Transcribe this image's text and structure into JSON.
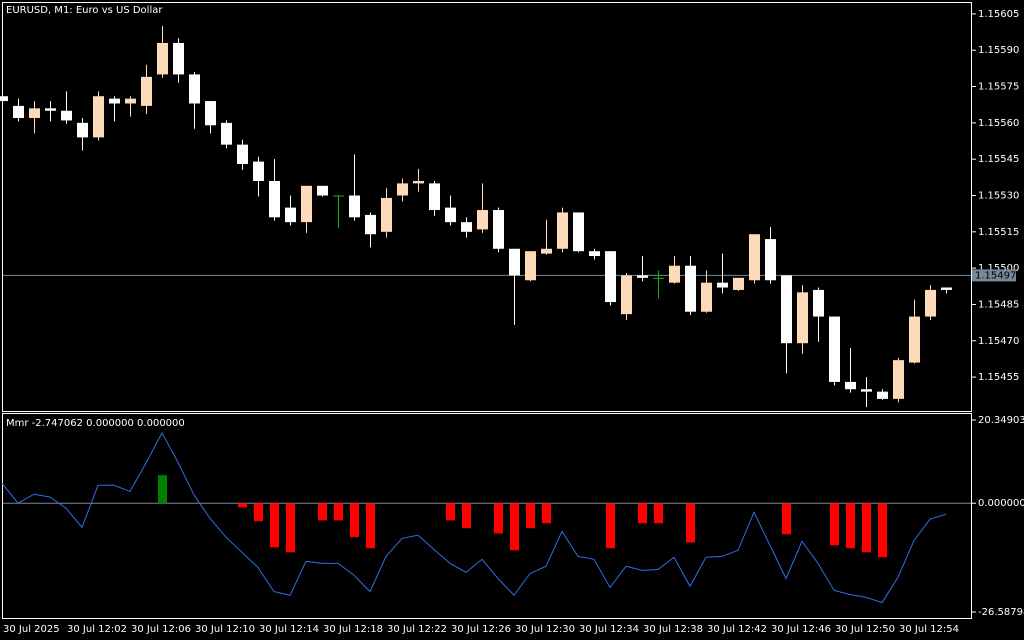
{
  "chart_data": [
    {
      "type": "candlestick",
      "title": "EURUSD, M1:  Euro vs US Dollar",
      "categories": [
        "30 Jul 2025",
        null,
        null,
        null,
        "30 Jul 12:02",
        null,
        null,
        null,
        "30 Jul 12:06",
        null,
        null,
        null,
        "30 Jul 12:10",
        null,
        null,
        null,
        "30 Jul 12:14",
        null,
        null,
        null,
        "30 Jul 12:18",
        null,
        null,
        null,
        "30 Jul 12:22",
        null,
        null,
        null,
        "30 Jul 12:26",
        null,
        null,
        null,
        "30 Jul 12:30",
        null,
        null,
        null,
        "30 Jul 12:34",
        null,
        null,
        null,
        "30 Jul 12:38",
        null,
        null,
        null,
        "30 Jul 12:42",
        null,
        null,
        null,
        "30 Jul 12:46",
        null,
        null,
        null,
        "30 Jul 12:50",
        null,
        null,
        null,
        "30 Jul 12:54",
        null,
        null,
        null
      ],
      "open": [
        1.15571,
        1.15567,
        1.15562,
        1.15566,
        1.15565,
        1.1556,
        1.15554,
        1.1557,
        1.15568,
        1.15567,
        1.1558,
        1.15593,
        1.1558,
        1.15569,
        1.1556,
        1.15551,
        1.15544,
        1.15536,
        1.15525,
        1.15519,
        1.15534,
        1.1553,
        1.1553,
        1.15522,
        1.15515,
        1.1553,
        1.15535,
        1.15535,
        1.15525,
        1.15519,
        1.15516,
        1.15524,
        1.15508,
        1.15495,
        1.15506,
        1.15508,
        1.15523,
        1.15507,
        1.15507,
        1.15481,
        1.15497,
        1.15496,
        1.15494,
        1.15501,
        1.15482,
        1.15494,
        1.15491,
        1.15495,
        1.15512,
        1.15497,
        1.15469,
        1.15491,
        1.1548,
        1.15453,
        1.1545,
        1.15449,
        1.15446,
        1.15461,
        1.1548,
        1.15492
      ],
      "high": [
        1.15571,
        1.1557,
        1.15569,
        1.15569,
        1.15573,
        1.15562,
        1.15573,
        1.15571,
        1.15571,
        1.15584,
        1.156,
        1.15595,
        1.15581,
        1.15569,
        1.15561,
        1.15553,
        1.15546,
        1.15545,
        1.1553,
        1.15534,
        1.15534,
        1.1553,
        1.15547,
        1.15523,
        1.15533,
        1.15537,
        1.15541,
        1.15536,
        1.1553,
        1.15521,
        1.15535,
        1.15525,
        1.15508,
        1.15507,
        1.1552,
        1.15525,
        1.15523,
        1.15508,
        1.15507,
        1.15498,
        1.15505,
        1.15499,
        1.15505,
        1.15505,
        1.15499,
        1.15506,
        1.15496,
        1.15514,
        1.15517,
        1.15497,
        1.15493,
        1.15492,
        1.1548,
        1.15467,
        1.15455,
        1.1545,
        1.15463,
        1.15487,
        1.15493,
        1.15492
      ],
      "low": [
        1.15568,
        1.15561,
        1.15556,
        1.15561,
        1.1556,
        1.15549,
        1.15553,
        1.15561,
        1.15563,
        1.15564,
        1.15579,
        1.15577,
        1.15558,
        1.15556,
        1.1555,
        1.15541,
        1.1553,
        1.1552,
        1.15518,
        1.15515,
        1.1553,
        1.15517,
        1.1552,
        1.15509,
        1.15513,
        1.15528,
        1.15532,
        1.15522,
        1.15518,
        1.15513,
        1.15515,
        1.15507,
        1.15477,
        1.15495,
        1.15506,
        1.15507,
        1.15507,
        1.15504,
        1.15485,
        1.15479,
        1.15495,
        1.15488,
        1.15494,
        1.15481,
        1.15482,
        1.1549,
        1.15491,
        1.15494,
        1.15494,
        1.15457,
        1.15465,
        1.1547,
        1.15452,
        1.15449,
        1.15443,
        1.15446,
        1.15445,
        1.15461,
        1.15479,
        1.1549
      ],
      "close": [
        1.15569,
        1.15562,
        1.15566,
        1.15565,
        1.15561,
        1.15554,
        1.15571,
        1.15568,
        1.1557,
        1.15579,
        1.15593,
        1.1558,
        1.15568,
        1.15559,
        1.15551,
        1.15543,
        1.15536,
        1.15521,
        1.15519,
        1.15534,
        1.1553,
        1.1553,
        1.15521,
        1.15514,
        1.15529,
        1.15535,
        1.15536,
        1.15524,
        1.15519,
        1.15515,
        1.15524,
        1.15508,
        1.15497,
        1.15507,
        1.15508,
        1.15523,
        1.15507,
        1.15505,
        1.15486,
        1.15497,
        1.15496,
        1.15496,
        1.15501,
        1.15482,
        1.15494,
        1.15492,
        1.15496,
        1.15514,
        1.15495,
        1.15469,
        1.1549,
        1.1548,
        1.15453,
        1.1545,
        1.15449,
        1.15446,
        1.15462,
        1.1548,
        1.15491,
        1.15491
      ],
      "up_color": "#ffdab9",
      "down_color": "#ffffff",
      "doji_color": "#00c000",
      "current_price": 1.15497,
      "ylim": [
        1.15441,
        1.156095
      ],
      "yticks": [
        1.15605,
        {
          "value": 1.1559,
          "label": "1.15590"
        },
        1.15575,
        {
          "value": 1.1556,
          "label": "1.15560"
        },
        1.15545,
        {
          "value": 1.1553,
          "label": "1.15530"
        },
        1.15515,
        {
          "value": 1.155,
          "label": "1.15500"
        },
        1.15485,
        {
          "value": 1.1547,
          "label": "1.15470"
        },
        1.15455
      ]
    },
    {
      "type": "combo",
      "title": "Mmr -2.747062 0.000000 0.000000",
      "series": [
        {
          "type": "bar",
          "up_color": "#008000",
          "down_color": "#ff0000",
          "values": [
            0,
            0,
            0,
            0,
            0,
            0,
            0,
            0,
            0,
            0,
            6.86,
            0,
            0,
            0,
            0,
            -1,
            -4.4,
            -10.8,
            -12,
            0,
            -4.2,
            -4.2,
            -8.3,
            -11,
            0,
            0,
            0,
            0,
            -4.2,
            -6.1,
            0,
            -7.4,
            -11.5,
            -6.1,
            -4.9,
            0,
            0,
            0,
            -11,
            0,
            -4.9,
            -4.9,
            0,
            -9.6,
            0,
            0,
            0,
            0,
            0,
            -7.6,
            0,
            0,
            -10.3,
            -11,
            -12,
            -13.2,
            0,
            0,
            0,
            0
          ]
        },
        {
          "type": "line",
          "color": "#2f6fe4",
          "values": [
            4.9,
            0,
            2.2,
            1.5,
            -1.2,
            -5.9,
            4.4,
            4.4,
            2.9,
            9.8,
            17.2,
            10,
            2,
            -3.7,
            -8.3,
            -12,
            -15.7,
            -21.6,
            -22.5,
            -14.2,
            -14.7,
            -14.7,
            -17.6,
            -21.6,
            -13,
            -8.6,
            -7.8,
            -11.3,
            -14.7,
            -16.9,
            -13.7,
            -18.4,
            -22.5,
            -17.2,
            -15.4,
            -6.9,
            -13,
            -13.7,
            -20.6,
            -15.4,
            -16.4,
            -16.2,
            -13.2,
            -20.3,
            -13.2,
            -13,
            -11.5,
            -2.2,
            -10.3,
            -18.4,
            -9.3,
            -14.7,
            -21.3,
            -22.3,
            -23,
            -24.3,
            -18.1,
            -9.1,
            -3.9,
            -2.7
          ]
        }
      ],
      "ylim": [
        -26.587987,
        20.349033
      ],
      "yticks": [
        20.349033,
        {
          "value": 0,
          "label": "0.000000"
        },
        -26.587987
      ]
    }
  ]
}
